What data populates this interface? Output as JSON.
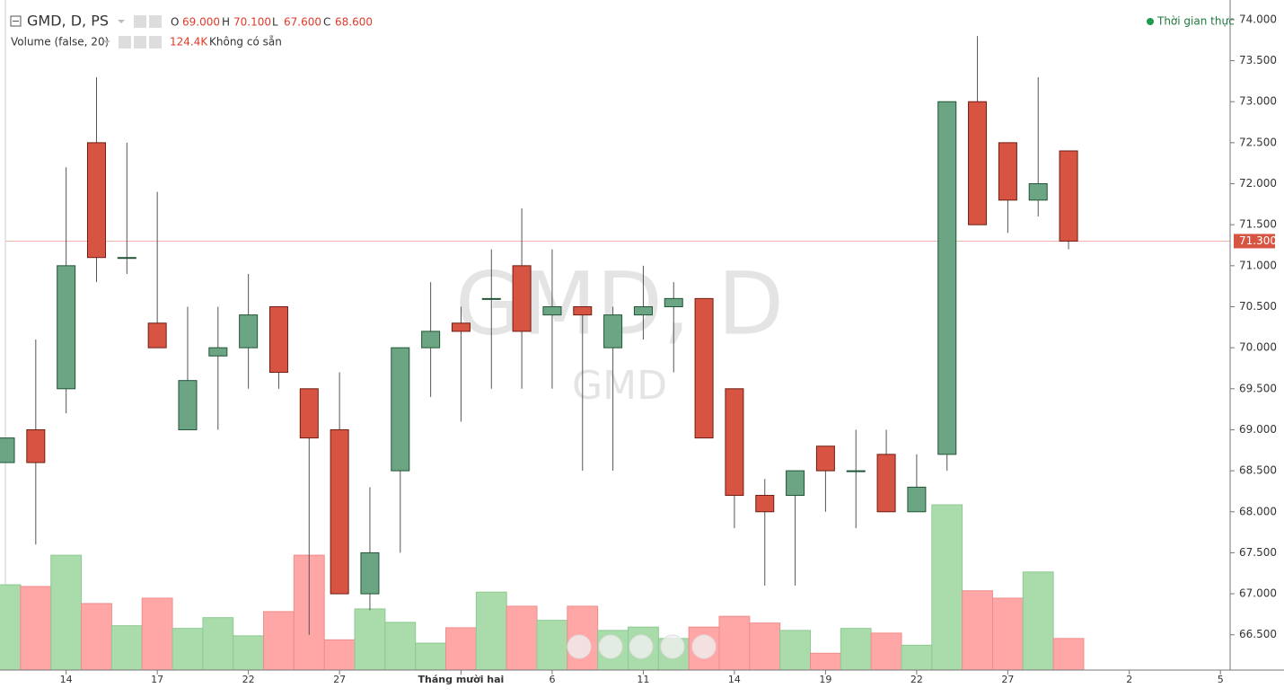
{
  "header": {
    "symbol": "GMD, D, PS",
    "o_key": "O",
    "o_label": "69.000",
    "h_key": "H",
    "h_label": "70.100",
    "l_key": "L",
    "l_label": "67.600",
    "c_key": "C",
    "c_label": "68.600",
    "volume_title": "Volume (false, 20)",
    "volume_label": "124.4K",
    "volume_note": "Không có sẵn",
    "status": "Thời gian thực"
  },
  "chart_data": {
    "type": "candlestick",
    "watermark": "GMD, D",
    "watermark_sub": "GMD",
    "categories": [
      null,
      null,
      "14",
      null,
      null,
      "17",
      null,
      null,
      "22",
      null,
      null,
      "27",
      null,
      null,
      null,
      "Tháng mười hai",
      null,
      null,
      "6",
      null,
      null,
      "11",
      null,
      null,
      "14",
      null,
      null,
      "19",
      null,
      null,
      "22",
      null,
      null,
      "27",
      null,
      null,
      null,
      "2",
      null,
      null,
      "5"
    ],
    "open": [
      68.6,
      69.0,
      69.5,
      72.5,
      71.1,
      70.3,
      69.0,
      69.9,
      70.0,
      70.5,
      69.5,
      69.0,
      67.0,
      68.5,
      70.0,
      70.3,
      70.6,
      71.0,
      70.4,
      70.5,
      70.0,
      70.4,
      70.5,
      70.6,
      69.5,
      68.2,
      68.2,
      68.8,
      68.5,
      68.7,
      68.0,
      68.7,
      73.0,
      72.5,
      71.8,
      72.4,
      null,
      null,
      null,
      null,
      null
    ],
    "high": [
      68.9,
      70.1,
      72.2,
      73.3,
      72.5,
      71.9,
      70.5,
      70.5,
      70.9,
      70.5,
      69.5,
      69.7,
      68.3,
      70.0,
      70.8,
      70.5,
      71.2,
      71.7,
      71.2,
      70.5,
      70.5,
      71.0,
      70.8,
      70.6,
      69.5,
      68.4,
      68.5,
      68.8,
      69.0,
      69.0,
      68.7,
      73.0,
      73.8,
      72.5,
      73.3,
      72.4,
      null,
      null,
      null,
      null,
      null
    ],
    "low": [
      68.6,
      67.6,
      69.2,
      70.8,
      70.9,
      70.0,
      69.0,
      69.0,
      69.5,
      69.5,
      66.5,
      67.0,
      66.8,
      67.5,
      69.4,
      69.1,
      69.5,
      69.5,
      69.5,
      68.5,
      68.5,
      70.1,
      69.7,
      68.9,
      67.8,
      67.1,
      67.1,
      68.0,
      67.8,
      68.0,
      68.0,
      68.5,
      71.5,
      71.4,
      71.6,
      71.2,
      null,
      null,
      null,
      null,
      null
    ],
    "close": [
      68.9,
      68.6,
      71.0,
      71.1,
      71.1,
      70.0,
      69.6,
      70.0,
      70.4,
      69.7,
      68.9,
      67.0,
      67.5,
      70.0,
      70.2,
      70.2,
      70.6,
      70.2,
      70.5,
      70.4,
      70.4,
      70.5,
      70.6,
      68.9,
      68.2,
      68.0,
      68.5,
      68.5,
      68.5,
      68.0,
      68.3,
      73.0,
      71.5,
      71.8,
      72.0,
      71.3,
      null,
      null,
      null,
      null,
      null
    ],
    "volume": [
      127000,
      124400,
      171000,
      99000,
      66000,
      107000,
      62000,
      78000,
      51000,
      87000,
      171000,
      45000,
      91000,
      71000,
      40000,
      63000,
      116000,
      95000,
      74000,
      95000,
      59000,
      64000,
      47000,
      64000,
      80000,
      70000,
      59000,
      25000,
      62000,
      55000,
      37000,
      246000,
      118000,
      107000,
      146000,
      47000,
      null,
      null,
      null,
      null,
      null
    ],
    "up_color": "#6ba583",
    "down_color": "#d75442",
    "up_volume_color": "#a9dcaa",
    "down_volume_color": "#ffa7a7",
    "ylim": [
      66.07,
      74.24
    ],
    "yticks": [
      {
        "value": 66.5,
        "label": "66.500"
      },
      {
        "value": 67,
        "label": "67.000"
      },
      {
        "value": 67.5,
        "label": "67.500"
      },
      {
        "value": 68,
        "label": "68.000"
      },
      {
        "value": 68.5,
        "label": "68.500"
      },
      {
        "value": 69,
        "label": "69.000"
      },
      {
        "value": 69.5,
        "label": "69.500"
      },
      {
        "value": 70,
        "label": "70.000"
      },
      {
        "value": 70.5,
        "label": "70.500"
      },
      {
        "value": 71,
        "label": "71.000"
      },
      {
        "value": 71.5,
        "label": "71.500"
      },
      {
        "value": 72,
        "label": "72.000"
      },
      {
        "value": 72.5,
        "label": "72.500"
      },
      {
        "value": 73,
        "label": "73.000"
      },
      {
        "value": 73.5,
        "label": "73.500"
      },
      {
        "value": 74,
        "label": "74.000"
      }
    ],
    "last_price": {
      "value": 71.3,
      "label": "71.300"
    }
  }
}
